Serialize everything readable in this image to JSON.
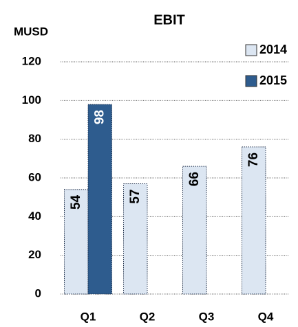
{
  "chart_data": {
    "type": "bar",
    "title": "EBIT",
    "y_label": "MUSD",
    "categories": [
      "Q1",
      "Q2",
      "Q3",
      "Q4"
    ],
    "series": [
      {
        "name": "2014",
        "color": "#dce6f2",
        "values": [
          54,
          57,
          66,
          76
        ]
      },
      {
        "name": "2015",
        "color": "#2e5c8e",
        "values": [
          98,
          null,
          null,
          null
        ]
      }
    ],
    "ylim": [
      0,
      120
    ],
    "yticks": [
      0,
      20,
      40,
      60,
      80,
      100,
      120
    ],
    "grid": true,
    "legend": "top-right",
    "data_labels": true
  }
}
